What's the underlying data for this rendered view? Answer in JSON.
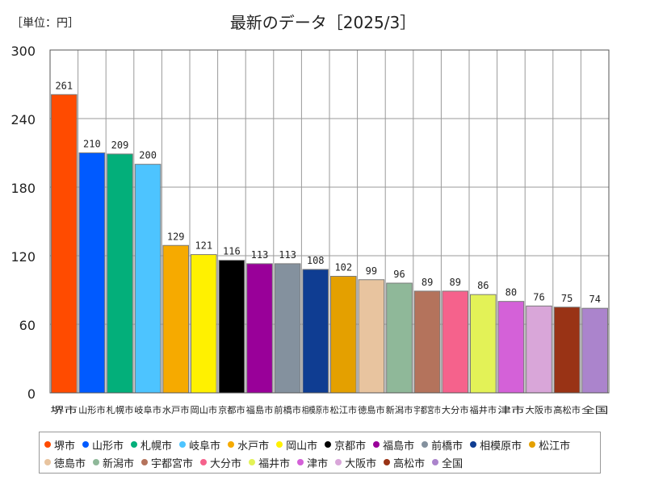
{
  "unit_label": "［単位：円］",
  "chart_data": {
    "type": "bar",
    "title": "最新のデータ［2025/3］",
    "xlabel": "",
    "ylabel": "",
    "ylim": [
      0,
      300
    ],
    "yticks": [
      0,
      60,
      120,
      180,
      240,
      300
    ],
    "grid": true,
    "legend": "bottom",
    "categories": [
      "堺市",
      "山形市",
      "札幌市",
      "岐阜市",
      "水戸市",
      "岡山市",
      "京都市",
      "福島市",
      "前橋市",
      "相模原市",
      "松江市",
      "徳島市",
      "新潟市",
      "宇都宮市",
      "大分市",
      "福井市",
      "津市",
      "大阪市",
      "高松市",
      "全国"
    ],
    "values": [
      261,
      210,
      209,
      200,
      129,
      121,
      116,
      113,
      113,
      108,
      102,
      99,
      96,
      89,
      89,
      86,
      80,
      76,
      75,
      74
    ],
    "colors": [
      "#ff4b00",
      "#005aff",
      "#03af7a",
      "#4dc4ff",
      "#f6aa00",
      "#fff100",
      "#000000",
      "#990099",
      "#84919e",
      "#0f3d92",
      "#e4a000",
      "#e8c49f",
      "#8fb899",
      "#b4735c",
      "#f5628c",
      "#e3f257",
      "#d461d8",
      "#d9a6d9",
      "#993315",
      "#ab84cc"
    ]
  }
}
